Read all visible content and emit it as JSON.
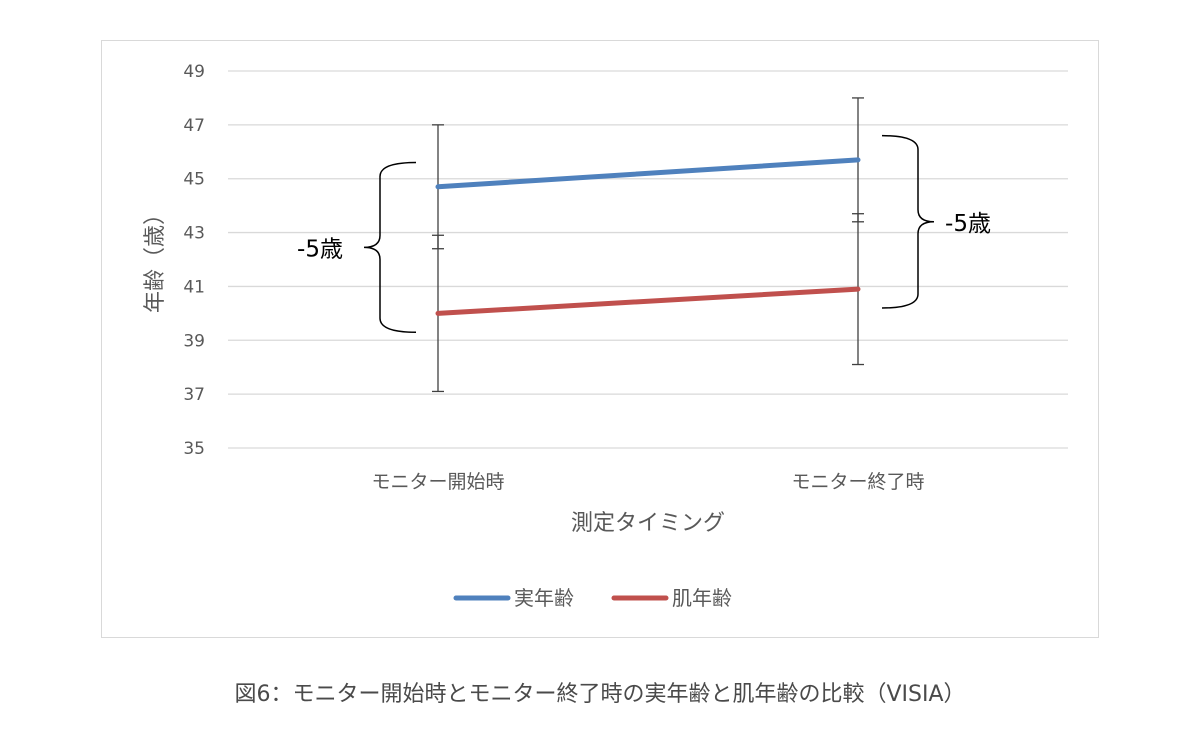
{
  "chart_data": {
    "type": "line",
    "categories": [
      "モニター開始時",
      "モニター終了時"
    ],
    "series": [
      {
        "name": "実年齢",
        "color": "#4f81bd",
        "values": [
          44.7,
          45.7
        ],
        "error_low": [
          42.4,
          43.4
        ],
        "error_high": [
          47.0,
          48.0
        ]
      },
      {
        "name": "肌年齢",
        "color": "#c0504d",
        "values": [
          40.0,
          40.9
        ],
        "error_low": [
          37.1,
          38.1
        ],
        "error_high": [
          42.9,
          43.7
        ]
      }
    ],
    "xlabel": "測定タイミング",
    "ylabel": "年齢（歳）",
    "ylim": [
      35,
      49
    ],
    "yticks": [
      35,
      37,
      39,
      41,
      43,
      45,
      47,
      49
    ],
    "grid": true,
    "legend_position": "bottom",
    "annotations": [
      {
        "text": "-5歳",
        "category_index": 0,
        "side": "left",
        "from": 39.3,
        "to": 45.6
      },
      {
        "text": "-5歳",
        "category_index": 1,
        "side": "right",
        "from": 40.2,
        "to": 46.6
      }
    ]
  },
  "caption": "図6：モニター開始時とモニター終了時の実年齢と肌年齢の比較（VISIA）"
}
